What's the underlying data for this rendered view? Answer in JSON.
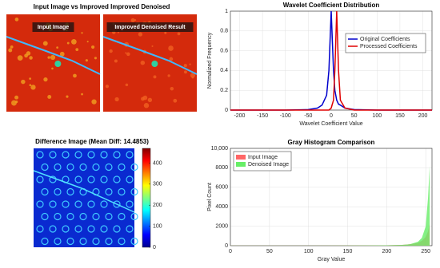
{
  "chart_data": [
    {
      "type": "image",
      "title": "Input Image vs Improved Improved Denoised",
      "labels": [
        "Input Image",
        "Improved Denoised Result"
      ]
    },
    {
      "type": "line",
      "title": "Wavelet Coefficient Distribution",
      "x_label": "Wavelet Coefficient Value",
      "y_label": "Normalized Frequency",
      "x": [
        -220,
        -100,
        -50,
        -30,
        -20,
        -10,
        -5,
        0,
        5,
        8,
        12,
        16,
        20,
        30,
        50,
        100,
        220
      ],
      "series": [
        {
          "name": "Original Coefficients",
          "color": "#0000cc",
          "values": [
            0,
            0,
            0.005,
            0.02,
            0.05,
            0.15,
            0.4,
            1,
            0.4,
            0.2,
            0.1,
            0.06,
            0.05,
            0.02,
            0.005,
            0,
            0
          ]
        },
        {
          "name": "Processed Coefficients",
          "color": "#e00000",
          "values": [
            0,
            0,
            0,
            0,
            0,
            0,
            0,
            0.02,
            0.1,
            0.4,
            1,
            0.4,
            0.1,
            0.02,
            0,
            0,
            0
          ]
        }
      ],
      "xlim": [
        -220,
        220
      ],
      "xticks": [
        -200,
        -150,
        -100,
        -50,
        0,
        50,
        100,
        150,
        200
      ],
      "ylim": [
        0,
        1
      ],
      "yticks": [
        0,
        0.2,
        0.4,
        0.6,
        0.8,
        1
      ],
      "grid": true,
      "legend": "right"
    },
    {
      "type": "heatmap",
      "title": "Difference Image (Mean Diff: 14.4853)",
      "clim": [
        0,
        470
      ],
      "cticks": [
        0,
        100,
        200,
        300,
        400
      ]
    },
    {
      "type": "area",
      "title": "Gray Histogram Comparison",
      "x_label": "Gray Value",
      "y_label": "Pixel Count",
      "x": [
        0,
        50,
        100,
        150,
        200,
        220,
        230,
        240,
        245,
        250,
        253,
        255
      ],
      "series": [
        {
          "name": "Input Image",
          "color": "#ff6666",
          "values": [
            10,
            10,
            15,
            20,
            40,
            80,
            150,
            300,
            500,
            900,
            1500,
            2200
          ]
        },
        {
          "name": "Denoised Image",
          "color": "#66ee66",
          "values": [
            10,
            10,
            15,
            20,
            40,
            80,
            150,
            400,
            800,
            2000,
            5000,
            8200
          ]
        }
      ],
      "xlim": [
        0,
        258
      ],
      "xticks": [
        0,
        50,
        100,
        150,
        200,
        250
      ],
      "ylim": [
        0,
        10000
      ],
      "yticks": [
        0,
        2000,
        4000,
        6000,
        8000,
        {
          "value": 10000,
          "label": "10,000"
        }
      ],
      "grid": true,
      "legend": "upper left"
    }
  ]
}
